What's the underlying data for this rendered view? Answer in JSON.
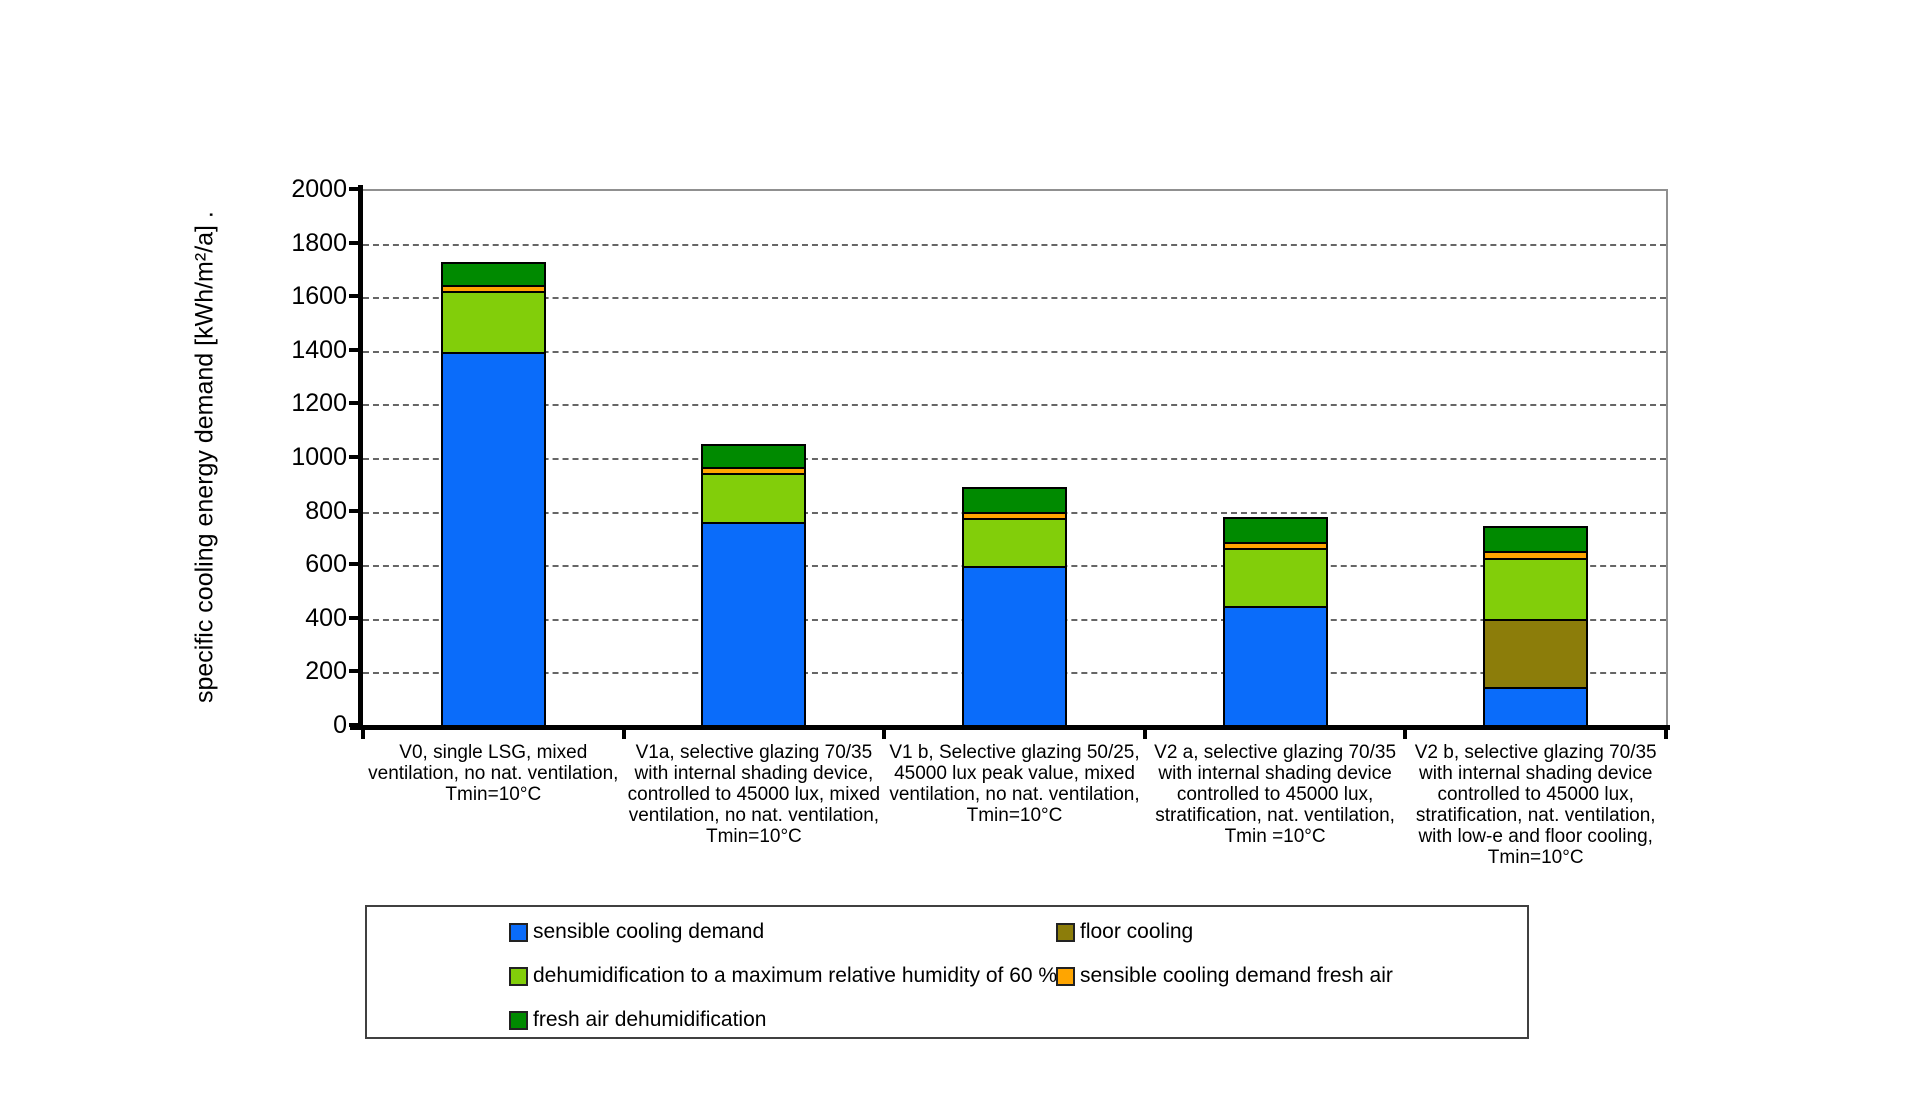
{
  "chart_data": {
    "type": "bar",
    "stacked": true,
    "title": "",
    "ylabel": "specific cooling energy demand [kWh/m²/a] .",
    "xlabel": "",
    "ylim": [
      0,
      2000
    ],
    "ytick_step": 200,
    "grid": "horizontal-dashed",
    "plot_border_color": "#909090",
    "axis_color": "#000000",
    "categories": [
      "V0, single LSG, mixed\nventilation, no nat. ventilation,\nTmin=10°C",
      "V1a, selective glazing 70/35\nwith internal shading device,\ncontrolled to 45000 lux, mixed\nventilation, no nat. ventilation,\nTmin=10°C",
      "V1 b, Selective glazing 50/25,\n45000 lux peak value, mixed\nventilation, no nat. ventilation,\nTmin=10°C",
      "V2 a, selective glazing 70/35\nwith internal shading device\ncontrolled to 45000 lux,\nstratification, nat. ventilation,\nTmin =10°C",
      "V2 b, selective glazing 70/35\nwith internal shading device\ncontrolled to 45000 lux,\nstratification, nat. ventilation,\nwith low-e and floor cooling,\nTmin=10°C"
    ],
    "series": [
      {
        "name": "sensible cooling demand",
        "color": "#0A6CFA",
        "values": [
          1400,
          765,
          600,
          450,
          150
        ]
      },
      {
        "name": "floor cooling",
        "color": "#8C7D0A",
        "values": [
          0,
          0,
          0,
          0,
          260
        ]
      },
      {
        "name": "dehumidification to a maximum relative humidity of 60 %",
        "color": "#82CE0A",
        "values": [
          235,
          190,
          185,
          225,
          235
        ]
      },
      {
        "name": "sensible cooling demand fresh air",
        "color": "#FFA500",
        "values": [
          30,
          30,
          30,
          30,
          35
        ]
      },
      {
        "name": "fresh air dehumidification",
        "color": "#008A00",
        "values": [
          95,
          95,
          100,
          100,
          100
        ]
      }
    ],
    "legend": {
      "position": "bottom",
      "column_series": [
        [
          0,
          2,
          4
        ],
        [
          1,
          3
        ]
      ]
    }
  }
}
